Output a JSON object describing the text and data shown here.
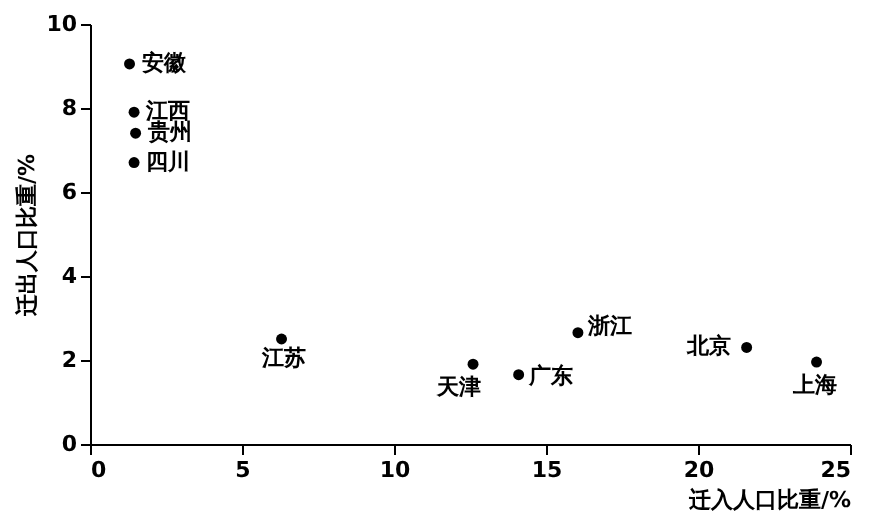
{
  "chart_data": {
    "type": "scatter",
    "xlabel": "迁入人口比重/%",
    "ylabel": "迁出人口比重/%",
    "x": [
      1.3,
      1.45,
      1.5,
      1.45,
      6.3,
      12.6,
      14.1,
      16.05,
      21.6,
      23.9
    ],
    "values": [
      9.05,
      7.9,
      7.4,
      6.7,
      2.5,
      1.9,
      1.65,
      2.65,
      2.3,
      1.95
    ],
    "color": "#000000",
    "marker": "circle",
    "grid": false,
    "xlim": [
      0,
      25
    ],
    "xticks": [
      0,
      5,
      10,
      15,
      20,
      25
    ],
    "ylim": [
      0,
      10
    ],
    "yticks": [
      0,
      2,
      4,
      6,
      8,
      10
    ],
    "annotations": [
      {
        "text": "安徽",
        "x": 1.3,
        "y": 9.05
      },
      {
        "text": "江西",
        "x": 1.45,
        "y": 7.9
      },
      {
        "text": "贵州",
        "x": 1.5,
        "y": 7.4
      },
      {
        "text": "四川",
        "x": 1.45,
        "y": 6.7
      },
      {
        "text": "江苏",
        "x": 6.3,
        "y": 2.5
      },
      {
        "text": "天津",
        "x": 12.6,
        "y": 1.9
      },
      {
        "text": "广东",
        "x": 14.1,
        "y": 1.65
      },
      {
        "text": "浙江",
        "x": 16.05,
        "y": 2.65
      },
      {
        "text": "北京",
        "x": 21.6,
        "y": 2.3
      },
      {
        "text": "上海",
        "x": 23.9,
        "y": 1.95
      }
    ]
  }
}
